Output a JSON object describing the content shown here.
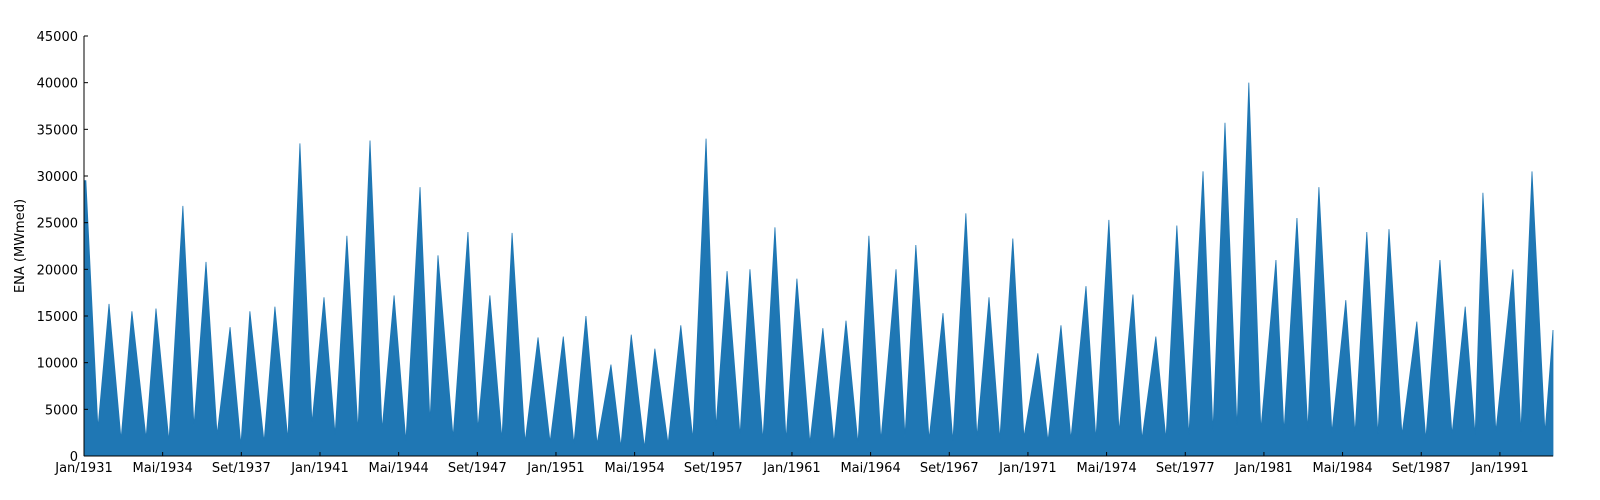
{
  "chart_data": {
    "type": "area",
    "y_label": "ENA (MWmed)",
    "color": "#1f77b4",
    "xlim": [
      1931,
      1993.25
    ],
    "ylim": [
      0,
      45000
    ],
    "yticks": [
      0,
      5000,
      10000,
      15000,
      20000,
      25000,
      30000,
      35000,
      40000,
      45000
    ],
    "xticks": [
      {
        "value": 1931,
        "label": "Jan/1931"
      },
      {
        "value": 1934.333,
        "label": "Mai/1934"
      },
      {
        "value": 1937.667,
        "label": "Set/1937"
      },
      {
        "value": 1941,
        "label": "Jan/1941"
      },
      {
        "value": 1944.333,
        "label": "Mai/1944"
      },
      {
        "value": 1947.667,
        "label": "Set/1947"
      },
      {
        "value": 1951,
        "label": "Jan/1951"
      },
      {
        "value": 1954.333,
        "label": "Mai/1954"
      },
      {
        "value": 1957.667,
        "label": "Set/1957"
      },
      {
        "value": 1961,
        "label": "Jan/1961"
      },
      {
        "value": 1964.333,
        "label": "Mai/1964"
      },
      {
        "value": 1967.667,
        "label": "Set/1967"
      },
      {
        "value": 1971,
        "label": "Jan/1971"
      },
      {
        "value": 1974.333,
        "label": "Mai/1974"
      },
      {
        "value": 1977.667,
        "label": "Set/1977"
      },
      {
        "value": 1981,
        "label": "Jan/1981"
      },
      {
        "value": 1984.333,
        "label": "Mai/1984"
      },
      {
        "value": 1987.667,
        "label": "Set/1987"
      },
      {
        "value": 1991,
        "label": "Jan/1991"
      }
    ],
    "x": [
      1931.0,
      1931.08,
      1931.59,
      1932.06,
      1932.57,
      1933.03,
      1933.63,
      1934.05,
      1934.6,
      1935.19,
      1935.66,
      1936.17,
      1936.64,
      1937.19,
      1937.65,
      1938.03,
      1938.63,
      1939.09,
      1939.64,
      1940.15,
      1940.66,
      1941.17,
      1941.64,
      1942.14,
      1942.61,
      1943.12,
      1943.63,
      1944.14,
      1944.64,
      1945.24,
      1945.66,
      1946.0,
      1946.64,
      1947.27,
      1947.69,
      1948.2,
      1948.71,
      1949.14,
      1949.69,
      1950.24,
      1950.75,
      1951.31,
      1951.76,
      1952.27,
      1952.74,
      1953.33,
      1953.75,
      1954.19,
      1954.75,
      1955.19,
      1955.75,
      1956.29,
      1956.8,
      1957.36,
      1957.78,
      1958.25,
      1958.8,
      1959.22,
      1959.77,
      1960.28,
      1960.75,
      1961.21,
      1961.76,
      1962.31,
      1962.78,
      1963.29,
      1963.8,
      1964.26,
      1964.77,
      1965.41,
      1965.79,
      1966.25,
      1966.81,
      1967.4,
      1967.82,
      1968.37,
      1968.84,
      1969.35,
      1969.81,
      1970.36,
      1970.83,
      1971.42,
      1971.85,
      1972.4,
      1972.82,
      1973.46,
      1973.88,
      1974.43,
      1974.86,
      1975.45,
      1975.83,
      1976.42,
      1976.85,
      1977.31,
      1977.82,
      1978.42,
      1978.84,
      1979.35,
      1979.86,
      1980.36,
      1980.87,
      1981.51,
      1981.85,
      1982.4,
      1982.86,
      1983.33,
      1983.88,
      1984.47,
      1984.86,
      1985.36,
      1985.83,
      1986.3,
      1986.85,
      1987.48,
      1987.86,
      1988.46,
      1988.97,
      1989.53,
      1989.95,
      1990.28,
      1990.83,
      1991.55,
      1991.89,
      1992.36,
      1992.91,
      1993.25
    ],
    "values": [
      29500,
      29500,
      3000,
      16300,
      1800,
      15500,
      1900,
      15800,
      1600,
      26800,
      3200,
      20800,
      2300,
      13800,
      1200,
      15500,
      1500,
      16000,
      1800,
      33500,
      3500,
      17000,
      2300,
      23600,
      2700,
      33800,
      2800,
      17200,
      1600,
      28800,
      3700,
      21500,
      2000,
      24000,
      2900,
      17200,
      1800,
      23900,
      1500,
      12700,
      1500,
      12800,
      1300,
      15000,
      1300,
      9800,
      1000,
      13000,
      900,
      11500,
      1300,
      14000,
      1800,
      34000,
      3000,
      19800,
      2200,
      20000,
      1700,
      24500,
      1700,
      19000,
      1400,
      13700,
      1400,
      14500,
      1300,
      23600,
      1700,
      20000,
      2100,
      22600,
      1800,
      15300,
      1600,
      26000,
      2000,
      17000,
      1800,
      23300,
      2000,
      11000,
      1600,
      14000,
      1800,
      18200,
      1800,
      25300,
      2600,
      17300,
      1800,
      12800,
      1800,
      24700,
      2200,
      30500,
      2600,
      35700,
      3000,
      40000,
      2800,
      21000,
      2600,
      25500,
      2800,
      28800,
      2500,
      16700,
      2400,
      24000,
      2300,
      24300,
      2300,
      14400,
      1800,
      21000,
      2300,
      16000,
      2200,
      28200,
      2600,
      20000,
      2600,
      30500,
      2500,
      13500
    ]
  }
}
